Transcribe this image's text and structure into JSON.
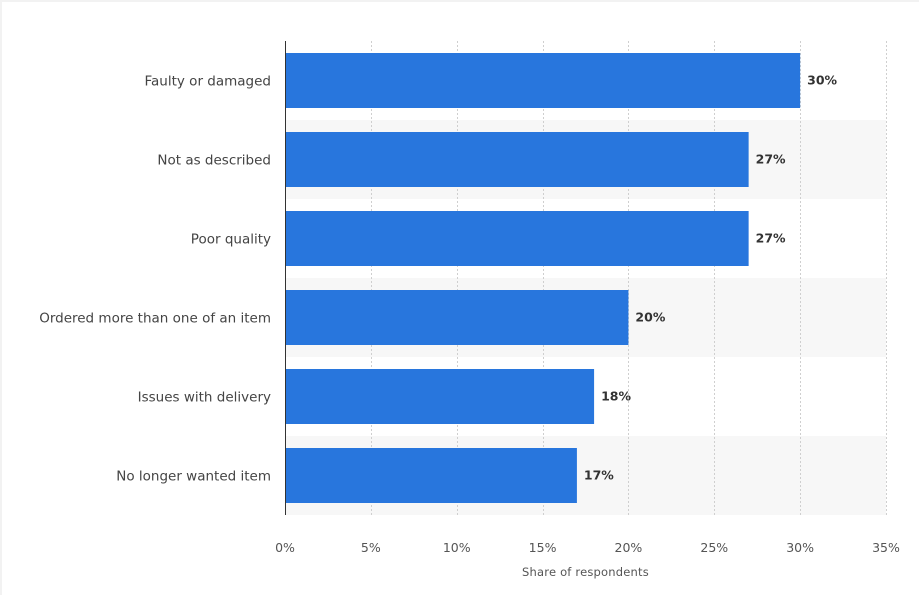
{
  "chart_data": {
    "type": "bar",
    "orientation": "horizontal",
    "categories": [
      "Faulty or damaged",
      "Not as described",
      "Poor quality",
      "Ordered more than one of an item",
      "Issues with delivery",
      "No longer wanted item"
    ],
    "values": [
      30,
      27,
      27,
      20,
      18,
      17
    ],
    "value_labels": [
      "30%",
      "27%",
      "27%",
      "20%",
      "18%",
      "17%"
    ],
    "xlabel": "Share of respondents",
    "ylabel": "",
    "xlim": [
      0,
      35
    ],
    "ticks": [
      0,
      5,
      10,
      15,
      20,
      25,
      30,
      35
    ],
    "tick_labels": [
      "0%",
      "5%",
      "10%",
      "15%",
      "20%",
      "25%",
      "30%",
      "35%"
    ],
    "bar_color": "#2876dd",
    "band_color": "#f7f7f7",
    "grid": true,
    "legend": "none"
  }
}
